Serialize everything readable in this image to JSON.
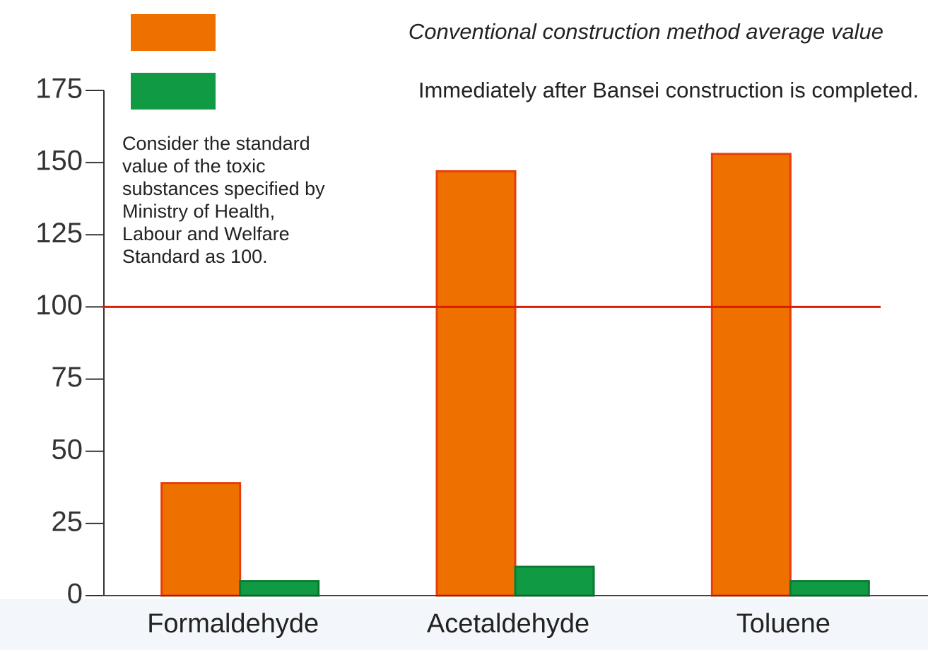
{
  "chart_data": {
    "type": "bar",
    "categories": [
      "Formaldehyde",
      "Acetaldehyde",
      "Toluene"
    ],
    "series": [
      {
        "name": "Conventional construction method average value",
        "color": "#ee7100",
        "edge": "#e83c0c",
        "values": [
          39,
          147,
          153
        ]
      },
      {
        "name": "Immediately after Bansei construction is completed.",
        "color": "#109a43",
        "edge": "#0b7a33",
        "values": [
          5,
          10,
          5
        ]
      }
    ],
    "ylim": [
      0,
      175
    ],
    "yticks": [
      0,
      25,
      50,
      75,
      100,
      125,
      150,
      175
    ],
    "reference_value": 100,
    "reference_color": "#d81e05",
    "annotation": [
      "Consider the standard",
      "value of the toxic",
      "substances specified by",
      "Ministry of Health,",
      "Labour and Welfare",
      "Standard as 100."
    ]
  }
}
